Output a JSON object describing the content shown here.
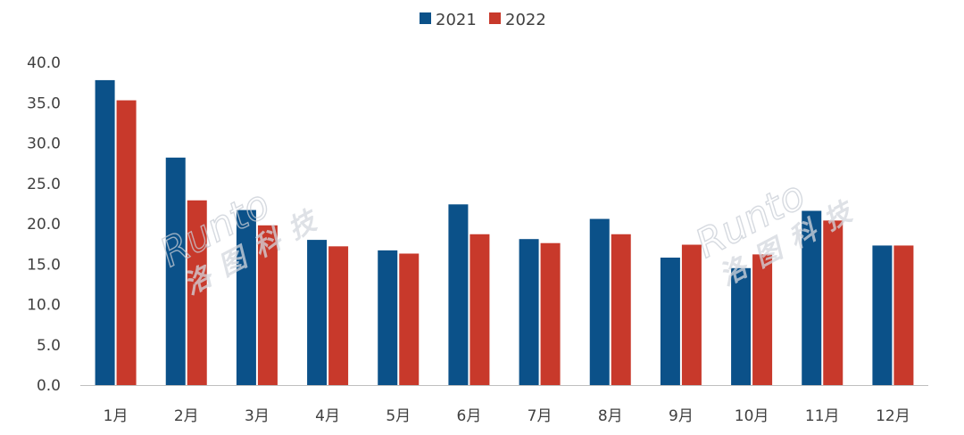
{
  "chart_data": {
    "type": "bar",
    "categories": [
      "1月",
      "2月",
      "3月",
      "4月",
      "5月",
      "6月",
      "7月",
      "8月",
      "9月",
      "10月",
      "11月",
      "12月"
    ],
    "series": [
      {
        "name": "2021",
        "color": "#0b5189",
        "values": [
          37.8,
          28.2,
          21.7,
          18.0,
          16.7,
          22.4,
          18.1,
          20.6,
          15.8,
          14.5,
          21.6,
          17.3
        ]
      },
      {
        "name": "2022",
        "color": "#c8392b",
        "values": [
          35.3,
          22.9,
          19.8,
          17.2,
          16.3,
          18.7,
          17.6,
          18.7,
          17.4,
          16.2,
          20.4,
          17.3
        ]
      }
    ],
    "ylim": [
      0,
      40
    ],
    "yticks": [
      "0.0",
      "5.0",
      "10.0",
      "15.0",
      "20.0",
      "25.0",
      "30.0",
      "35.0",
      "40.0"
    ],
    "legend_position": "top-center",
    "grid": false
  },
  "watermark": {
    "latin": "Runto",
    "chinese": "洛图科技"
  }
}
